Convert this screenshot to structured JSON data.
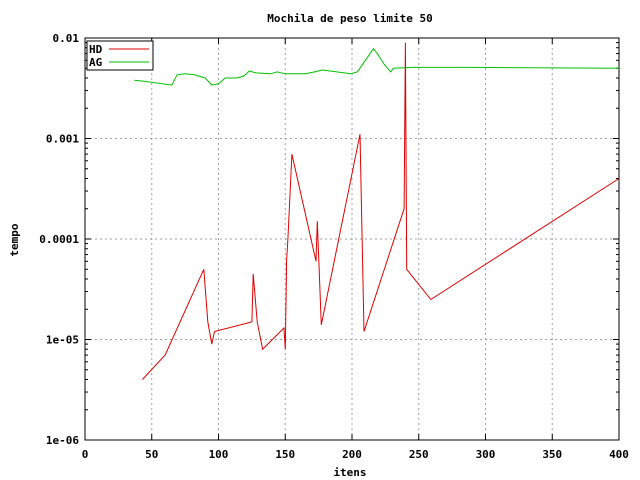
{
  "chart_data": {
    "type": "line",
    "title": "Mochila de peso limite 50",
    "xlabel": "itens",
    "ylabel": "tempo",
    "xlim": [
      0,
      400
    ],
    "ylim": [
      1e-06,
      0.01
    ],
    "yscale": "log",
    "grid": true,
    "legend_position": "top-left",
    "x_ticks": [
      0,
      50,
      100,
      150,
      200,
      250,
      300,
      350,
      400
    ],
    "x_tick_labels": [
      "0",
      "50",
      "100",
      "150",
      "200",
      "250",
      "300",
      "350",
      "400"
    ],
    "y_ticks": [
      1e-06,
      1e-05,
      0.0001,
      0.001,
      0.01
    ],
    "y_tick_labels": [
      "1e-06",
      "1e-05",
      "0.0001",
      "0.001",
      "0.01"
    ],
    "series": [
      {
        "name": "HD",
        "color": "#e00000",
        "x": [
          43,
          60,
          89,
          92,
          95,
          97,
          125,
          126,
          129,
          133,
          149,
          150,
          151,
          152,
          155,
          173,
          174,
          177,
          206,
          209,
          239,
          240,
          241,
          259,
          400
        ],
        "y": [
          4e-06,
          7e-06,
          5e-05,
          1.5e-05,
          9e-06,
          1.2e-05,
          1.5e-05,
          4.5e-05,
          1.5e-05,
          8e-06,
          1.3e-05,
          8e-06,
          6e-05,
          0.0001,
          0.0007,
          6e-05,
          0.00015,
          1.4e-05,
          0.0011,
          1.2e-05,
          0.0002,
          0.009,
          5e-05,
          2.5e-05,
          0.0004
        ]
      },
      {
        "name": "AG",
        "color": "#00c000",
        "x": [
          37,
          45,
          65,
          69,
          75,
          82,
          90,
          95,
          100,
          105,
          114,
          119,
          121,
          123,
          128,
          139,
          144,
          150,
          157,
          165,
          172,
          178,
          199,
          204,
          216,
          219,
          224,
          229,
          231,
          245,
          290,
          400
        ],
        "y": [
          0.0038,
          0.0037,
          0.0034,
          0.0043,
          0.0044,
          0.0043,
          0.004,
          0.0034,
          0.0035,
          0.004,
          0.004,
          0.0042,
          0.0044,
          0.0047,
          0.0045,
          0.0044,
          0.0046,
          0.0044,
          0.0044,
          0.0044,
          0.0046,
          0.0048,
          0.0044,
          0.0046,
          0.0078,
          0.007,
          0.0055,
          0.0046,
          0.005,
          0.0051,
          0.0051,
          0.005
        ]
      }
    ]
  }
}
